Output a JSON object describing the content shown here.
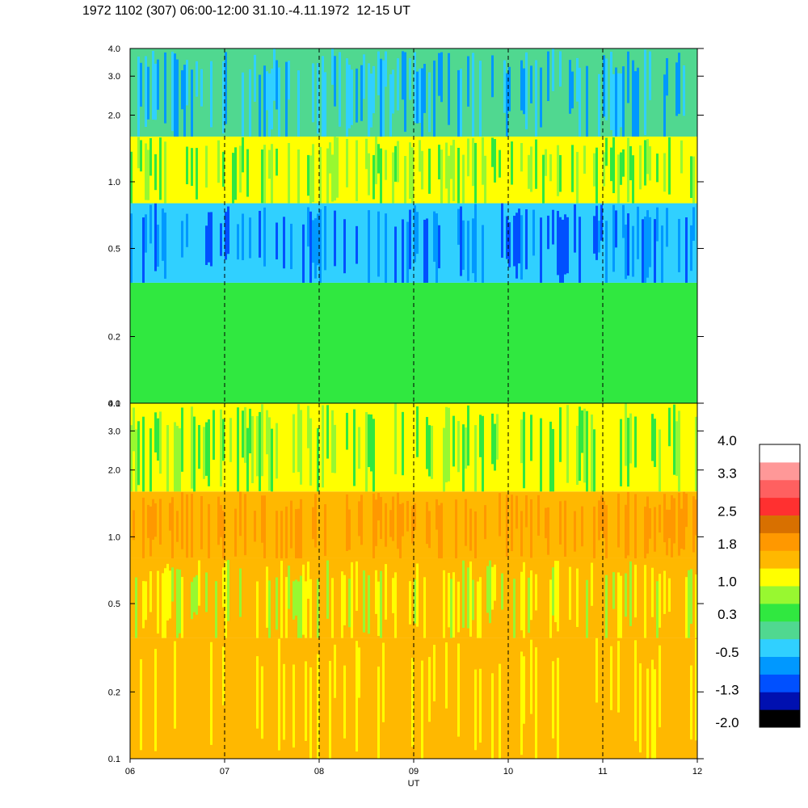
{
  "title": "1972 1102 (307) 06:00-12:00 31.10.-4.11.1972  12-15 UT",
  "colors": {
    "scale": [
      "#000000",
      "#0010b0",
      "#0050ff",
      "#0098ff",
      "#30d0ff",
      "#50d890",
      "#30e840",
      "#98f830",
      "#ffff00",
      "#ffb800",
      "#ff9800",
      "#d87000",
      "#ff3030",
      "#ff6060",
      "#ff9898",
      "#ffffff"
    ],
    "dashed_line": "#000000",
    "frame": "#000000"
  },
  "chart_data": [
    {
      "type": "heatmap",
      "panel": "upper",
      "x": [
        "06",
        "07",
        "08",
        "09",
        "10",
        "11",
        "12"
      ],
      "xlim": [
        6,
        12
      ],
      "ylim": [
        0.1,
        4.0
      ],
      "yscale": "log",
      "yticks": [
        "0.1",
        "0.2",
        "0.5",
        "1.0",
        "2.0",
        "3.0",
        "4.0"
      ],
      "yvals": [
        0.1,
        0.2,
        0.5,
        1.0,
        2.0,
        3.0,
        4.0
      ],
      "dashed_lines_at": [
        7,
        8,
        9,
        10,
        11
      ],
      "bands": [
        {
          "from": 0.1,
          "to": 0.35,
          "level": 0.3,
          "alt": 0.6
        },
        {
          "from": 0.35,
          "to": 0.8,
          "level": -0.5,
          "alt": -1.0
        },
        {
          "from": 0.8,
          "to": 1.6,
          "level": 1.0,
          "alt": 0.3
        },
        {
          "from": 1.6,
          "to": 4.0,
          "level": 0.0,
          "alt": -0.8
        }
      ]
    },
    {
      "type": "heatmap",
      "panel": "lower",
      "x": [
        "06",
        "07",
        "08",
        "09",
        "10",
        "11",
        "12"
      ],
      "xlim": [
        6,
        12
      ],
      "xlabel": "UT",
      "ylim": [
        0.1,
        4.0
      ],
      "yscale": "log",
      "yticks": [
        "0.1",
        "0.2",
        "0.5",
        "1.0",
        "2.0",
        "3.0",
        "4.0"
      ],
      "yvals": [
        0.1,
        0.2,
        0.5,
        1.0,
        2.0,
        3.0,
        4.0
      ],
      "dashed_lines_at": [
        7,
        8,
        9,
        10,
        11
      ],
      "bands": [
        {
          "from": 0.1,
          "to": 0.35,
          "level": 1.6,
          "alt": 1.2
        },
        {
          "from": 0.35,
          "to": 0.8,
          "level": 1.4,
          "alt": 0.8
        },
        {
          "from": 0.8,
          "to": 1.6,
          "level": 1.5,
          "alt": 2.0
        },
        {
          "from": 1.6,
          "to": 4.0,
          "level": 1.2,
          "alt": 0.6
        }
      ]
    }
  ],
  "colorbar": {
    "labels": [
      "4.0",
      "3.3",
      "2.5",
      "1.8",
      "1.0",
      "0.3",
      "-0.5",
      "-1.3",
      "-2.0"
    ],
    "min": -2.0,
    "max": 4.0
  }
}
